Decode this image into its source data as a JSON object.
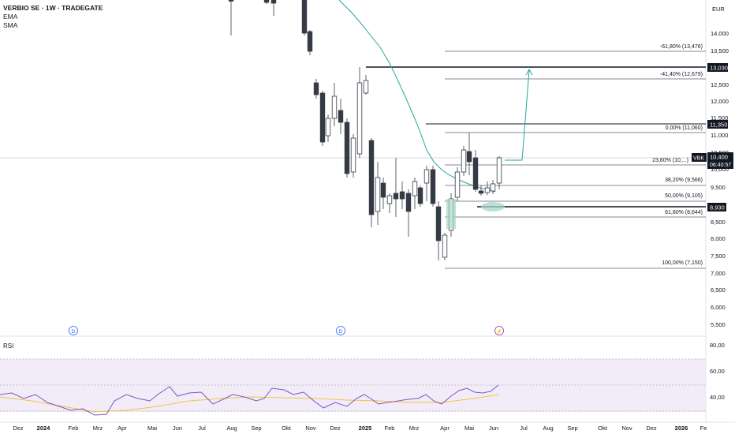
{
  "header": {
    "symbol": "VERBIO SE · 1W · TRADEGATE",
    "indicator_1": "EMA",
    "indicator_2": "SMA",
    "currency": "EUR"
  },
  "price_axis": {
    "ticks": [
      "14,000",
      "13,500",
      "12,500",
      "12,000",
      "11,500",
      "11,000",
      "10,500",
      "10,000",
      "9,500",
      "9,000",
      "8,500",
      "8,000",
      "7,500",
      "7,000",
      "6,500",
      "6,000",
      "5,500"
    ],
    "tags": {
      "t13030": "13,030",
      "t11350": "11,350",
      "t8930": "8,930",
      "symbol": "VBK",
      "last": "10,400",
      "countdown": "06:40:57"
    }
  },
  "fib_labels": {
    "f1": "-61,80% (13,476)",
    "f2": "-41,40% (12,679)",
    "f3": "0,00% (11,060)",
    "f4": "23,60% (10,...)",
    "f5": "38,20% (9,566)",
    "f6": "50,00% (9,105)",
    "f7": "61,80% (8,644)",
    "f8": "100,00% (7,150)"
  },
  "time_axis": [
    "Dez",
    "2024",
    "Feb",
    "Mrz",
    "Apr",
    "Mai",
    "Jun",
    "Jul",
    "Aug",
    "Sep",
    "Okt",
    "Nov",
    "Dez",
    "2025",
    "Feb",
    "Mrz",
    "Apr",
    "Mai",
    "Jun",
    "Jul",
    "Aug",
    "Sep",
    "Okt",
    "Nov",
    "Dez",
    "2026",
    "Fe"
  ],
  "events": {
    "dividend_1": "D",
    "dividend_2": "D",
    "lightning": "⚡"
  },
  "rsi": {
    "label": "RSI",
    "ticks": [
      "80,00",
      "60,00",
      "40,00"
    ]
  },
  "colors": {
    "bull": "#ffffff",
    "bear": "#363a45",
    "ema": "#26a69a",
    "rsi_line": "#7e57c2",
    "rsi_ma": "#f5c342",
    "rsi_band": "#ede7f6",
    "target_arrow": "#26a69a"
  }
}
